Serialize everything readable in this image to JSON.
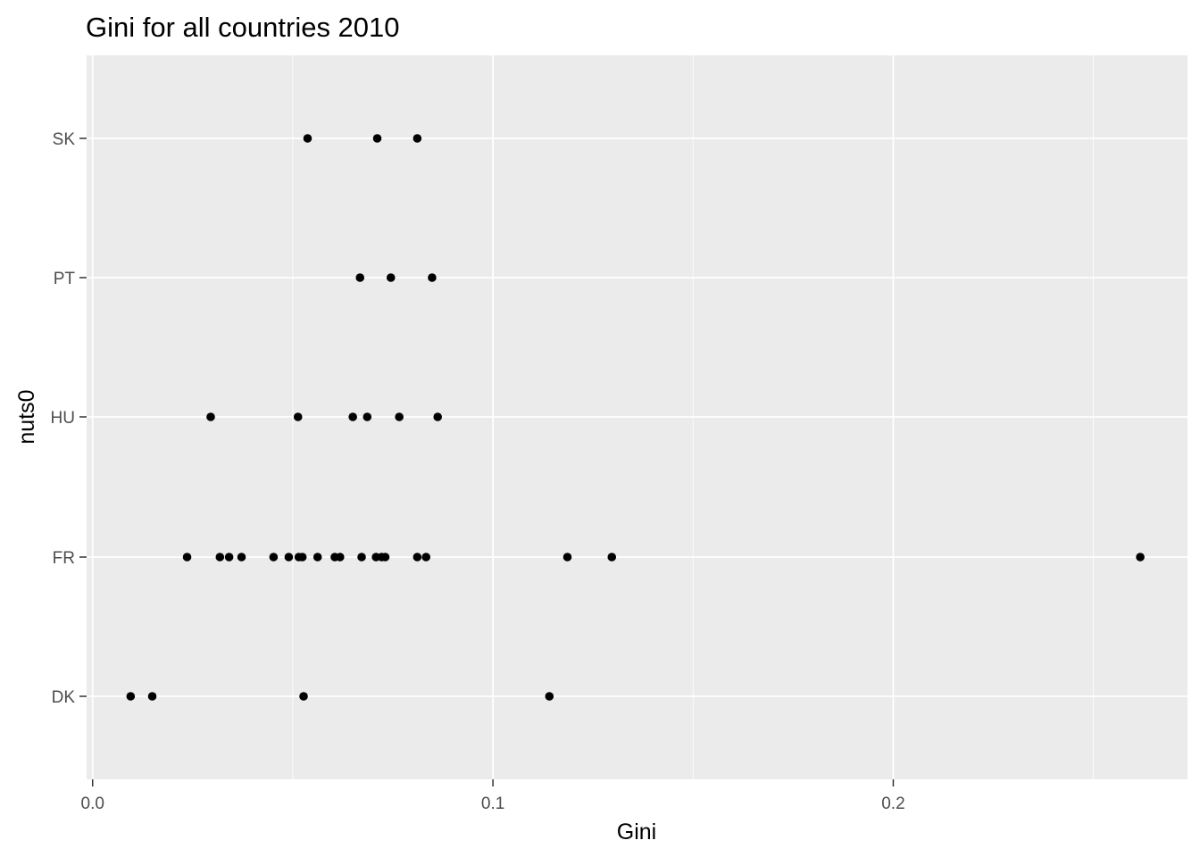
{
  "chart_data": {
    "type": "scatter",
    "title": "Gini for all countries 2010",
    "xlabel": "Gini",
    "ylabel": "nuts0",
    "xlim": [
      -0.0015,
      0.2735
    ],
    "x_ticks": [
      0.0,
      0.1,
      0.2
    ],
    "x_tick_labels": [
      "0.0",
      "0.1",
      "0.2"
    ],
    "categories": [
      "DK",
      "FR",
      "HU",
      "PT",
      "SK"
    ],
    "grid": true,
    "legend": "none",
    "colors": {
      "panel_background": "#ebebeb",
      "grid": "#ffffff",
      "point": "#000000",
      "tick_label": "#4d4d4d",
      "tick": "#333333"
    },
    "points": [
      {
        "category": "SK",
        "x": 0.0537
      },
      {
        "category": "SK",
        "x": 0.0711
      },
      {
        "category": "SK",
        "x": 0.0811
      },
      {
        "category": "PT",
        "x": 0.0668
      },
      {
        "category": "PT",
        "x": 0.0745
      },
      {
        "category": "PT",
        "x": 0.0848
      },
      {
        "category": "HU",
        "x": 0.0295
      },
      {
        "category": "HU",
        "x": 0.0513
      },
      {
        "category": "HU",
        "x": 0.065
      },
      {
        "category": "HU",
        "x": 0.0686
      },
      {
        "category": "HU",
        "x": 0.0766
      },
      {
        "category": "HU",
        "x": 0.0862
      },
      {
        "category": "FR",
        "x": 0.0236
      },
      {
        "category": "FR",
        "x": 0.0318
      },
      {
        "category": "FR",
        "x": 0.0341
      },
      {
        "category": "FR",
        "x": 0.0372
      },
      {
        "category": "FR",
        "x": 0.0452
      },
      {
        "category": "FR",
        "x": 0.049
      },
      {
        "category": "FR",
        "x": 0.0515
      },
      {
        "category": "FR",
        "x": 0.0524
      },
      {
        "category": "FR",
        "x": 0.0562
      },
      {
        "category": "FR",
        "x": 0.0605
      },
      {
        "category": "FR",
        "x": 0.0618
      },
      {
        "category": "FR",
        "x": 0.0672
      },
      {
        "category": "FR",
        "x": 0.0708
      },
      {
        "category": "FR",
        "x": 0.0722
      },
      {
        "category": "FR",
        "x": 0.0731
      },
      {
        "category": "FR",
        "x": 0.0811
      },
      {
        "category": "FR",
        "x": 0.0833
      },
      {
        "category": "FR",
        "x": 0.1186
      },
      {
        "category": "FR",
        "x": 0.1297
      },
      {
        "category": "FR",
        "x": 0.2617
      },
      {
        "category": "DK",
        "x": 0.0095
      },
      {
        "category": "DK",
        "x": 0.0149
      },
      {
        "category": "DK",
        "x": 0.0527
      },
      {
        "category": "DK",
        "x": 0.1141
      }
    ]
  }
}
